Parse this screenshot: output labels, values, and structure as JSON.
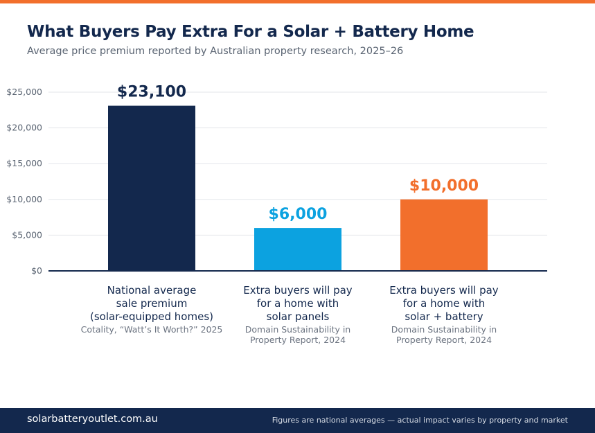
{
  "header": {
    "title": "What Buyers Pay Extra For a Solar + Battery Home",
    "subtitle": "Average price premium reported by Australian property research, 2025–26"
  },
  "footer": {
    "site": "solarbatteryoutlet.com.au",
    "note": "Figures are national averages — actual impact varies by property and market"
  },
  "colors": {
    "accent": "#f26f2c",
    "navy": "#13284d",
    "blue": "#0ca2e0",
    "orange": "#f26f2c"
  },
  "chart_data": {
    "type": "bar",
    "title": "What Buyers Pay Extra For a Solar + Battery Home",
    "subtitle": "Average price premium reported by Australian property research, 2025–26",
    "xlabel": "",
    "ylabel": "",
    "ylim": [
      0,
      25000
    ],
    "grid": true,
    "y_ticks": [
      0,
      5000,
      10000,
      15000,
      20000,
      25000
    ],
    "y_tick_labels": [
      "$0",
      "$5,000",
      "$10,000",
      "$15,000",
      "$20,000",
      "$25,000"
    ],
    "categories": [
      "National average sale premium (solar-equipped homes)",
      "Extra buyers will pay for a home with solar panels",
      "Extra buyers will pay for a home with solar + battery"
    ],
    "values": [
      23100,
      6000,
      10000
    ],
    "bars": [
      {
        "value": 23100,
        "value_label": "$23,100",
        "color": "#13284d",
        "label_lines": [
          "National average",
          "sale premium",
          "(solar-equipped homes)"
        ],
        "source_lines": [
          "Cotality, “Watt’s It Worth?” 2025"
        ]
      },
      {
        "value": 6000,
        "value_label": "$6,000",
        "color": "#0ca2e0",
        "label_lines": [
          "Extra buyers will pay",
          "for a home with",
          "solar panels"
        ],
        "source_lines": [
          "Domain Sustainability in",
          "Property Report, 2024"
        ]
      },
      {
        "value": 10000,
        "value_label": "$10,000",
        "color": "#f26f2c",
        "label_lines": [
          "Extra buyers will pay",
          "for a home with",
          "solar + battery"
        ],
        "source_lines": [
          "Domain Sustainability in",
          "Property Report, 2024"
        ]
      }
    ]
  }
}
